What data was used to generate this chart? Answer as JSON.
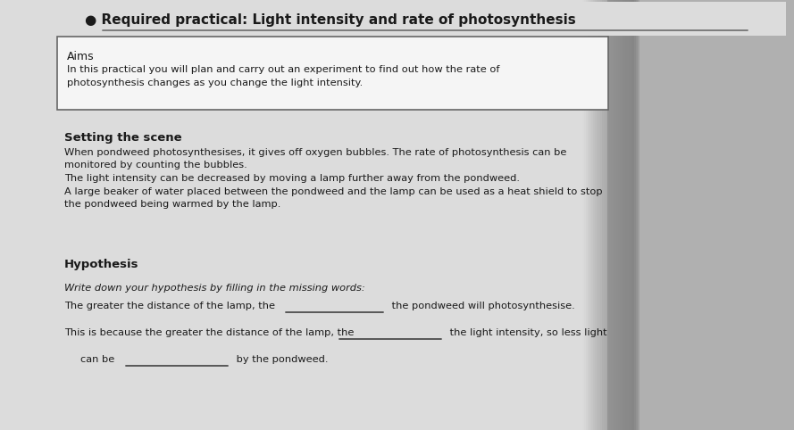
{
  "title": "Required practical: Light intensity and rate of photosynthesis",
  "bullet": "●",
  "aims_header": "Aims",
  "aims_body_line1": "In this practical you will plan and carry out an experiment to find out how the rate of",
  "aims_body_line2": "photosynthesis changes as you change the light intensity.",
  "scene_header": "Setting the scene",
  "scene_body1a": "When pondweed photosynthesises, it gives off oxygen bubbles. The rate of photosynthesis can be",
  "scene_body1b": "monitored by counting the bubbles.",
  "scene_body2": "The light intensity can be decreased by moving a lamp further away from the pondweed.",
  "scene_body3a": "A large beaker of water placed between the pondweed and the lamp can be used as a heat shield to stop",
  "scene_body3b": "the pondweed being warmed by the lamp.",
  "hyp_header": "Hypothesis",
  "hyp_intro": "Write down your hypothesis by filling in the missing words:",
  "hyp_line1a": "The greater the distance of the lamp, the ",
  "hyp_line1b": " the pondweed will photosynthesise.",
  "hyp_line2a": "This is because the greater the distance of the lamp, the ",
  "hyp_line2b": " the light intensity, so less light",
  "hyp_line3a": "can be ",
  "hyp_line3b": " by the pondweed.",
  "bg_color": "#b0b0b0",
  "page_color": "#d8d8d8",
  "box_color": "#f5f5f5",
  "text_color": "#1a1a1a",
  "line_color": "#555555",
  "blank_line_color": "#222222",
  "shadow_color": "#888888"
}
